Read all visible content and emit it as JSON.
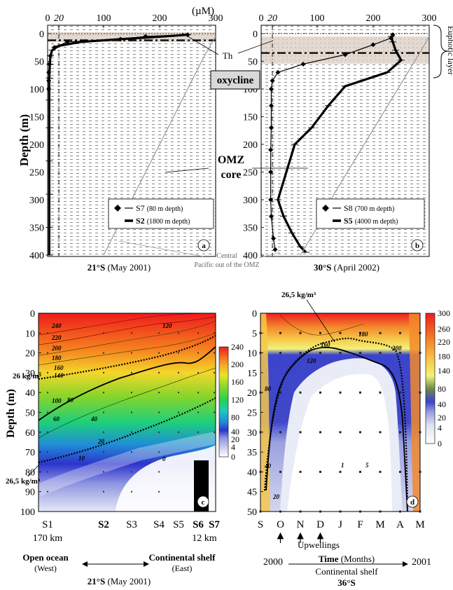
{
  "figure": {
    "unit_label": "(µM)",
    "th_label": "Th",
    "oxycline_label": "oxycline",
    "euphotic_label": "Euphotic layer",
    "omz_label_1": "OMZ",
    "omz_label_2": "core",
    "central_pacific_label_1": "Central",
    "central_pacific_label_2": "Pacific out of the OMZ",
    "depth_label": "Depth (m)",
    "depth_m_label": "Depth (m)"
  },
  "chart_data": [
    {
      "panel": "a",
      "type": "line",
      "subtitle_bold": "21°S",
      "subtitle_rest": " (May 2001)",
      "ylabel": "Depth (m)",
      "xlim": [
        0,
        300
      ],
      "ylim": [
        400,
        0
      ],
      "x_ticks": [
        0,
        20,
        100,
        200,
        300
      ],
      "y_ticks": [
        0,
        50,
        100,
        150,
        200,
        250,
        300,
        350,
        400
      ],
      "series": [
        {
          "name": "S7",
          "legend_detail": "(80 m depth)",
          "style": "thin-diamond",
          "x": [
            250,
            175,
            130,
            35,
            12,
            5,
            3,
            2,
            2,
            2
          ],
          "y": [
            2,
            5,
            10,
            15,
            25,
            40,
            55,
            70,
            85,
            100
          ]
        },
        {
          "name": "S2",
          "legend_detail": "(1800 m depth)",
          "style": "thick",
          "x": [
            250,
            210,
            130,
            60,
            20,
            8,
            5,
            4,
            3,
            3,
            3,
            3,
            3,
            3,
            3
          ],
          "y": [
            2,
            5,
            10,
            15,
            22,
            30,
            40,
            55,
            80,
            120,
            170,
            230,
            290,
            350,
            400
          ]
        },
        {
          "name": "Central Pacific",
          "style": "grey",
          "x": [
            300,
            280,
            260,
            240,
            220,
            200,
            180,
            160,
            140,
            120,
            100
          ],
          "y": [
            5,
            40,
            80,
            120,
            160,
            200,
            240,
            280,
            320,
            360,
            400
          ]
        }
      ],
      "th_depth": 12,
      "oxycline_range": [
        12,
        30
      ]
    },
    {
      "panel": "b",
      "type": "line",
      "subtitle_bold": "30°S",
      "subtitle_rest": " (April 2002)",
      "xlim": [
        0,
        300
      ],
      "ylim": [
        400,
        0
      ],
      "x_ticks": [
        0,
        20,
        100,
        200,
        300
      ],
      "series": [
        {
          "name": "S8",
          "legend_detail": "(700 m depth)",
          "style": "thin-diamond",
          "x": [
            235,
            232,
            200,
            150,
            75,
            30,
            20,
            18,
            18,
            18,
            17,
            17,
            17,
            18,
            22,
            25
          ],
          "y": [
            2,
            8,
            20,
            38,
            55,
            70,
            85,
            100,
            130,
            170,
            210,
            250,
            300,
            330,
            370,
            390
          ]
        },
        {
          "name": "S5",
          "legend_detail": "(4000 m depth)",
          "style": "thick",
          "x": [
            232,
            235,
            240,
            250,
            225,
            150,
            120,
            90,
            60,
            30,
            40,
            55,
            70,
            80
          ],
          "y": [
            5,
            15,
            30,
            48,
            70,
            95,
            130,
            170,
            200,
            300,
            330,
            360,
            385,
            395
          ]
        },
        {
          "name": "Central Pacific",
          "style": "grey",
          "x": [
            300,
            280,
            250,
            220,
            190,
            160,
            130,
            100,
            70
          ],
          "y": [
            5,
            40,
            90,
            140,
            190,
            240,
            290,
            350,
            400
          ]
        }
      ],
      "th_depth": 35,
      "oxycline_range": [
        20,
        75
      ]
    },
    {
      "panel": "c",
      "type": "heatmap",
      "subtitle_bold": "21°S",
      "subtitle_rest": " (May 2001)",
      "ylabel": "Depth (m)",
      "ylim": [
        100,
        0
      ],
      "y_ticks": [
        0,
        10,
        20,
        30,
        40,
        50,
        60,
        70,
        80,
        90,
        100
      ],
      "stations": [
        "S1",
        "S2",
        "S3",
        "S4",
        "S5",
        "S6",
        "S7"
      ],
      "bold_stations": [
        "S2",
        "S6",
        "S7"
      ],
      "left_distance": "170 km",
      "right_distance": "12 km",
      "left_bottom_bold": "Open ocean",
      "left_bottom_sub": "(West)",
      "right_bottom_bold": "Continental shelf",
      "right_bottom_sub": "(East)",
      "colorbar_ticks": [
        0,
        4,
        20,
        40,
        80,
        120,
        160,
        200,
        240
      ],
      "isopycnal_labels": [
        "26 kg/m³",
        "26,5 kg/m³"
      ],
      "contour_labels": [
        "240",
        "220",
        "200",
        "180",
        "160",
        "140",
        "120",
        "100",
        "80",
        "60",
        "40",
        "20",
        "10",
        "0"
      ]
    },
    {
      "panel": "d",
      "type": "heatmap",
      "subtitle_bold": "36°S",
      "subtitle_rest": "",
      "time_bold": "Time",
      "time_rest": " (Months)",
      "shelf_label": "Continental shelf",
      "year_start": "2000",
      "year_end": "2001",
      "upwelling_label": "Upwellings",
      "upwelling_months": [
        "O",
        "N",
        "D"
      ],
      "ylim": [
        50,
        0
      ],
      "y_ticks": [
        0,
        5,
        10,
        15,
        20,
        25,
        30,
        35,
        40,
        45,
        50
      ],
      "months": [
        "S",
        "O",
        "N",
        "D",
        "J",
        "F",
        "M",
        "A",
        "M"
      ],
      "colorbar_ticks": [
        0,
        4,
        20,
        40,
        80,
        140,
        180,
        220,
        260,
        300
      ],
      "isopycnal_label": "26,5 kg/m³",
      "contour_labels": [
        "200",
        "180",
        "160",
        "120",
        "80",
        "40",
        "20",
        "1",
        "5"
      ]
    }
  ]
}
